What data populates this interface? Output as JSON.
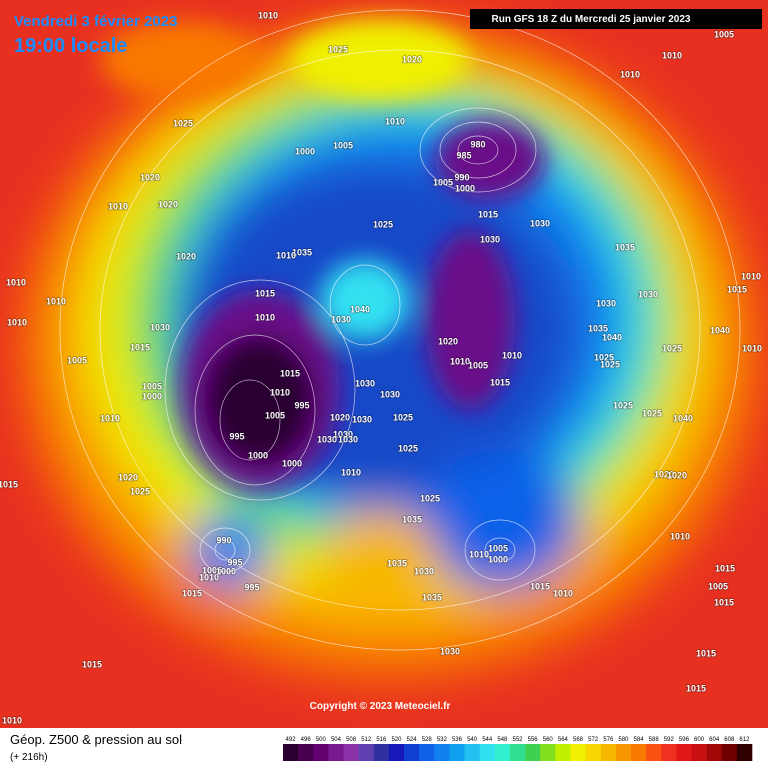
{
  "header": {
    "date": "Vendredi 3 février 2023",
    "time": "19:00 locale",
    "run": "Run GFS 18 Z du Mercredi 25 janvier 2023"
  },
  "footer": {
    "copyright": "Copyright © 2023 Meteociel.fr",
    "legend_title": "Géop. Z500 & pression au sol",
    "lead_time": "(+ 216h)"
  },
  "colorbar": {
    "values": [
      492,
      496,
      500,
      504,
      508,
      512,
      516,
      520,
      524,
      528,
      532,
      536,
      540,
      544,
      548,
      552,
      556,
      560,
      564,
      568,
      572,
      576,
      580,
      584,
      588,
      592,
      596,
      600,
      604,
      608,
      612
    ],
    "colors": [
      "#2b0030",
      "#4a0050",
      "#640070",
      "#7a1890",
      "#8a30a8",
      "#6040b0",
      "#3030a0",
      "#1818b8",
      "#1040d0",
      "#1060e8",
      "#1080f0",
      "#10a0f0",
      "#20c0f0",
      "#30e0f0",
      "#30f0d0",
      "#30e090",
      "#40d050",
      "#80e020",
      "#c0f000",
      "#f0f000",
      "#f8d800",
      "#f8b800",
      "#f89800",
      "#f87800",
      "#f85010",
      "#f03020",
      "#e01818",
      "#c81010",
      "#a00808",
      "#700000",
      "#300000"
    ]
  },
  "isobar_labels": [
    1010,
    1025,
    1020,
    1005,
    1010,
    1010,
    1025,
    1010,
    1000,
    1005,
    980,
    985,
    1020,
    1010,
    1020,
    990,
    1005,
    1000,
    1015,
    1030,
    1025,
    1030,
    1035,
    1020,
    1035,
    1010,
    1010,
    1010,
    1015,
    1040,
    1030,
    1015,
    1010,
    1030,
    1010,
    1010,
    1030,
    1035,
    1030,
    1040,
    1040,
    1020,
    1015,
    1025,
    1010,
    1005,
    1010,
    1010,
    1005,
    1025,
    1025,
    1015,
    1005,
    1000,
    1030,
    1010,
    1015,
    1030,
    995,
    1005,
    1020,
    1030,
    1010,
    1025,
    1025,
    1025,
    1040,
    995,
    1030,
    1030,
    1030,
    1025,
    1000,
    1000,
    1010,
    1020,
    1020,
    1020,
    1025,
    1015,
    1025,
    1035,
    990,
    1005,
    1010,
    1000,
    1010,
    995,
    1035,
    1030,
    1005,
    1010,
    1000,
    1015,
    995,
    1015,
    1015,
    1010,
    1035,
    1005,
    1015,
    1015,
    1030,
    1015,
    1010,
    1015
  ]
}
